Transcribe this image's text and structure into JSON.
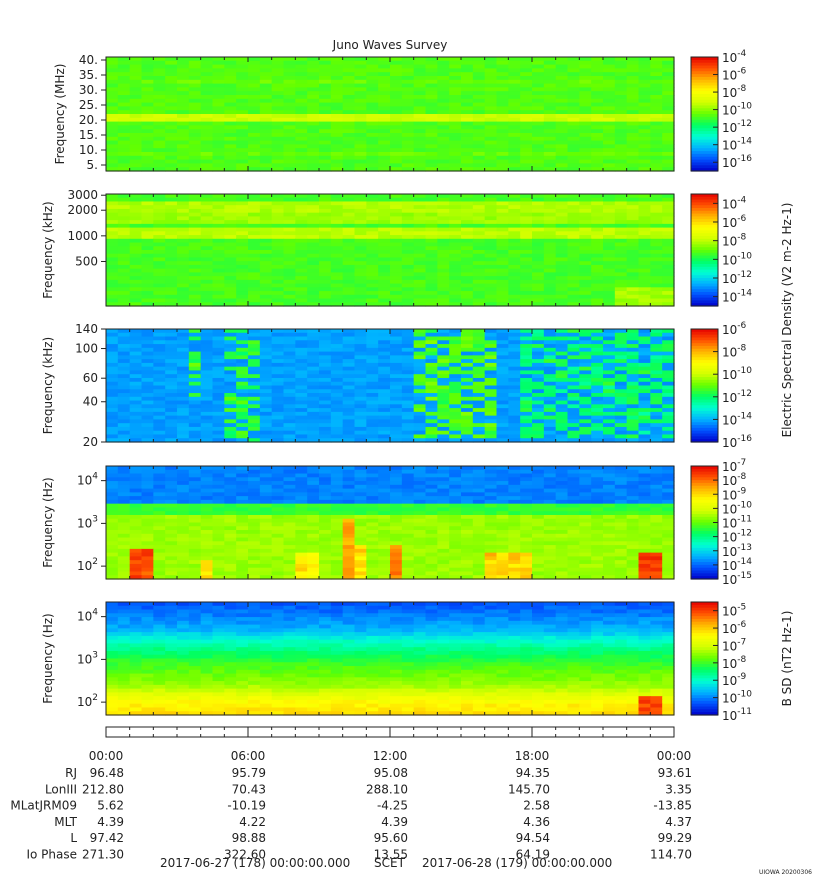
{
  "title": "Juno Waves Survey",
  "footer_stamp": "UIOWA 20200306",
  "colors": {
    "background": "#ffffff",
    "axis": "#222222",
    "colormap": [
      "#0000c8",
      "#0050ff",
      "#00b4ff",
      "#00ffd2",
      "#00ff64",
      "#64ff00",
      "#d2ff00",
      "#ffff00",
      "#ffb400",
      "#ff5000",
      "#e60000"
    ]
  },
  "chart_data": [
    {
      "type": "heatmap",
      "ylabel": "Frequency (MHz)",
      "yscale": "linear",
      "ylim": [
        3,
        41
      ],
      "yticks": [
        {
          "v": 5,
          "label": "5."
        },
        {
          "v": 10,
          "label": "10."
        },
        {
          "v": 15,
          "label": "15."
        },
        {
          "v": 20,
          "label": "20."
        },
        {
          "v": 25,
          "label": "25."
        },
        {
          "v": 30,
          "label": "30."
        },
        {
          "v": 35,
          "label": "35."
        },
        {
          "v": 40,
          "label": "40."
        }
      ],
      "base_level": 0.48,
      "bands": [
        {
          "f": 21.0,
          "w": 1.2,
          "level": 0.6
        },
        {
          "f": 33.0,
          "w": 0.6,
          "level": 0.5
        },
        {
          "f": 8.5,
          "w": 0.5,
          "level": 0.5
        },
        {
          "f": 38.5,
          "w": 0.4,
          "level": 0.5
        }
      ],
      "colorbar": {
        "range": [
          -17,
          -4
        ],
        "ticks": [
          {
            "e": -4
          },
          {
            "e": -6
          },
          {
            "e": -8
          },
          {
            "e": -10
          },
          {
            "e": -12
          },
          {
            "e": -14
          },
          {
            "e": -16
          }
        ],
        "label": ""
      }
    },
    {
      "type": "heatmap",
      "ylabel": "Frequency (kHz)",
      "yscale": "log",
      "ylim": [
        150,
        3100
      ],
      "yticks": [
        {
          "v": 500,
          "label": "500"
        },
        {
          "v": 1000,
          "label": "1000"
        },
        {
          "v": 2000,
          "label": "2000"
        },
        {
          "v": 3000,
          "label": "3000"
        }
      ],
      "base_level": 0.47,
      "bands": [
        {
          "f": 1100,
          "w": 0.06,
          "level": 0.58
        },
        {
          "f": 2200,
          "w": 0.07,
          "level": 0.57
        },
        {
          "f": 1600,
          "w": 0.05,
          "level": 0.55
        }
      ],
      "corner_glow": {
        "x_from": 0.9,
        "f_below": 250,
        "level": 0.56
      },
      "colorbar": {
        "range": [
          -15,
          -3
        ],
        "ticks": [
          {
            "e": -4
          },
          {
            "e": -6
          },
          {
            "e": -8
          },
          {
            "e": -10
          },
          {
            "e": -12
          },
          {
            "e": -14
          }
        ],
        "label": "Electric Spectral Density (V2 m-2 Hz-1)"
      }
    },
    {
      "type": "heatmap",
      "ylabel": "Frequency (kHz)",
      "yscale": "log",
      "ylim": [
        20,
        140
      ],
      "yticks": [
        {
          "v": 20,
          "label": "20"
        },
        {
          "v": 40,
          "label": "40"
        },
        {
          "v": 60,
          "label": "60"
        },
        {
          "v": 100,
          "label": "100"
        },
        {
          "v": 140,
          "label": "140"
        }
      ],
      "base_level": 0.18,
      "emissions": [
        {
          "x0": 0.14,
          "x1": 0.16,
          "f_top": 140,
          "f_bottom": 35,
          "level": 0.42
        },
        {
          "x0": 0.21,
          "x1": 0.28,
          "f_top": 140,
          "f_bottom": 20,
          "level": 0.4
        },
        {
          "x0": 0.55,
          "x1": 0.68,
          "f_top": 140,
          "f_bottom": 22,
          "level": 0.44
        },
        {
          "x0": 0.72,
          "x1": 1.0,
          "f_top": 140,
          "f_bottom": 22,
          "level": 0.36
        }
      ],
      "colorbar": {
        "range": [
          -16,
          -6
        ],
        "ticks": [
          {
            "e": -6
          },
          {
            "e": -8
          },
          {
            "e": -10
          },
          {
            "e": -12
          },
          {
            "e": -14
          },
          {
            "e": -16
          }
        ],
        "label": ""
      }
    },
    {
      "type": "heatmap",
      "ylabel": "Frequency (Hz)",
      "yscale": "log",
      "ylim": [
        50,
        22000
      ],
      "yticks": [
        {
          "v": 100,
          "label": "10^2"
        },
        {
          "v": 1000,
          "label": "10^3"
        },
        {
          "v": 10000,
          "label": "10^4"
        }
      ],
      "layers": [
        {
          "f_above": 3000,
          "level": 0.15
        },
        {
          "f_above": 1500,
          "level": 0.45
        },
        {
          "f_above": 0,
          "level": 0.55
        }
      ],
      "hot_spots": [
        {
          "x": 0.06,
          "w": 0.05,
          "f_top": 250,
          "level": 0.95
        },
        {
          "x": 0.18,
          "w": 0.02,
          "f_top": 150,
          "level": 0.8
        },
        {
          "x": 0.35,
          "w": 0.05,
          "f_top": 200,
          "level": 0.75
        },
        {
          "x": 0.44,
          "w": 0.05,
          "f_top": 300,
          "level": 0.78
        },
        {
          "x": 0.43,
          "w": 0.02,
          "f_top": 1400,
          "level": 0.85
        },
        {
          "x": 0.52,
          "w": 0.02,
          "f_top": 300,
          "level": 0.9
        },
        {
          "x": 0.7,
          "w": 0.08,
          "f_top": 200,
          "level": 0.8
        },
        {
          "x": 0.96,
          "w": 0.04,
          "f_top": 200,
          "level": 0.95
        }
      ],
      "colorbar": {
        "range": [
          -15,
          -7
        ],
        "ticks": [
          {
            "e": -7
          },
          {
            "e": -8
          },
          {
            "e": -9
          },
          {
            "e": -10
          },
          {
            "e": -11
          },
          {
            "e": -12
          },
          {
            "e": -13
          },
          {
            "e": -14
          },
          {
            "e": -15
          }
        ],
        "label": ""
      }
    },
    {
      "type": "heatmap",
      "ylabel": "Frequency (Hz)",
      "yscale": "log",
      "ylim": [
        50,
        22000
      ],
      "yticks": [
        {
          "v": 100,
          "label": "10^2"
        },
        {
          "v": 1000,
          "label": "10^3"
        },
        {
          "v": 10000,
          "label": "10^4"
        }
      ],
      "profile": [
        {
          "f": 22000,
          "level": 0.1
        },
        {
          "f": 5000,
          "level": 0.2
        },
        {
          "f": 2000,
          "level": 0.35
        },
        {
          "f": 800,
          "level": 0.46
        },
        {
          "f": 250,
          "level": 0.55
        },
        {
          "f": 100,
          "level": 0.7
        },
        {
          "f": 50,
          "level": 0.75
        }
      ],
      "hot_spots": [
        {
          "x": 0.95,
          "w": 0.04,
          "f_top": 150,
          "level": 0.95
        }
      ],
      "colorbar": {
        "range": [
          -11,
          -4.5
        ],
        "ticks": [
          {
            "e": -5
          },
          {
            "e": -6
          },
          {
            "e": -7
          },
          {
            "e": -8
          },
          {
            "e": -9
          },
          {
            "e": -10
          },
          {
            "e": -11
          }
        ],
        "label": "B SD (nT2 Hz-1)"
      }
    }
  ],
  "time_axis": {
    "labels": [
      "00:00",
      "06:00",
      "12:00",
      "18:00",
      "00:00"
    ]
  },
  "ephemeris": [
    {
      "label": "RJ",
      "values": [
        "96.48",
        "95.79",
        "95.08",
        "94.35",
        "93.61"
      ]
    },
    {
      "label": "LonIII",
      "values": [
        "212.80",
        "70.43",
        "288.10",
        "145.70",
        "3.35"
      ]
    },
    {
      "label": "MLatJRM09",
      "values": [
        "5.62",
        "-10.19",
        "-4.25",
        "2.58",
        "-13.85"
      ]
    },
    {
      "label": "MLT",
      "values": [
        "4.39",
        "4.22",
        "4.39",
        "4.36",
        "4.37"
      ]
    },
    {
      "label": "L",
      "values": [
        "97.42",
        "98.88",
        "95.60",
        "94.54",
        "99.29"
      ]
    },
    {
      "label": "Io Phase",
      "values": [
        "271.30",
        "322.60",
        "13.55",
        "64.19",
        "114.70"
      ]
    }
  ],
  "scet": {
    "start": "2017-06-27 (178) 00:00:00.000",
    "label": "SCET",
    "end": "2017-06-28 (179) 00:00:00.000"
  }
}
